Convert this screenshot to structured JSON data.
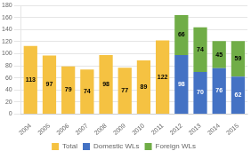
{
  "chart_data": {
    "type": "bar",
    "categories": [
      "2004",
      "2005",
      "2006",
      "2007",
      "2008",
      "2009",
      "2010",
      "2011",
      "2012",
      "2013",
      "2014",
      "2015"
    ],
    "series": [
      {
        "name": "Total",
        "color": "#F5C242",
        "values": [
          113,
          97,
          79,
          74,
          98,
          77,
          89,
          122,
          null,
          null,
          null,
          null
        ]
      },
      {
        "name": "Domestic WLs",
        "color": "#4472C4",
        "values": [
          null,
          null,
          null,
          null,
          null,
          null,
          null,
          null,
          98,
          70,
          76,
          62
        ]
      },
      {
        "name": "Foreign WLs",
        "color": "#70AD47",
        "values": [
          null,
          null,
          null,
          null,
          null,
          null,
          null,
          null,
          66,
          74,
          45,
          59
        ]
      }
    ],
    "stacked": true,
    "data_labels": true,
    "ylim": [
      0,
      180
    ],
    "yticks": [
      0,
      20,
      40,
      60,
      80,
      100,
      120,
      140,
      160,
      180
    ],
    "grid": true,
    "legend": "bottom"
  }
}
